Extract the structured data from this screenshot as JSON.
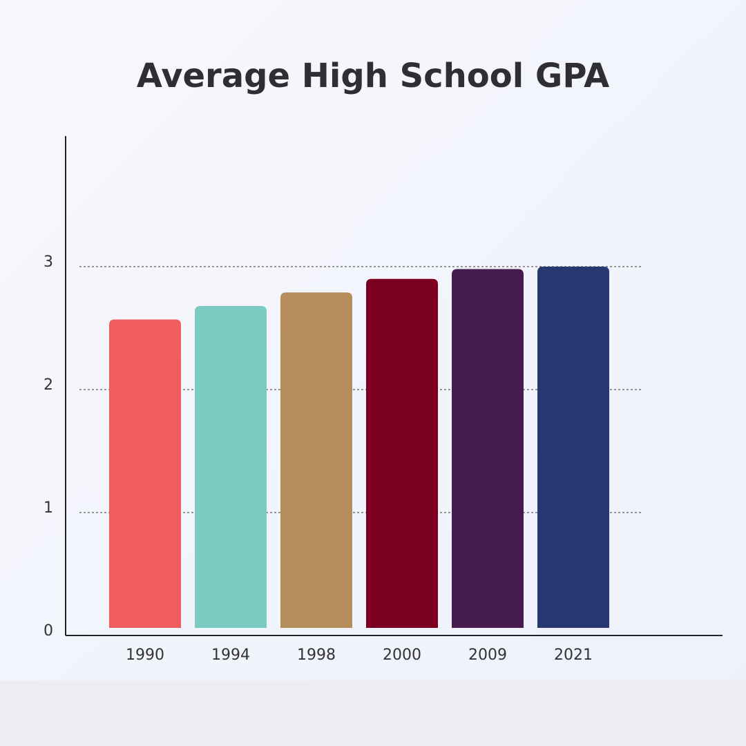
{
  "chart_data": {
    "type": "bar",
    "title": "Average High School GPA",
    "categories": [
      "1990",
      "1994",
      "1998",
      "2000",
      "2009",
      "2021"
    ],
    "values": [
      2.57,
      2.68,
      2.79,
      2.9,
      2.98,
      3.0
    ],
    "colors": [
      "#f05d5e",
      "#7ccbc3",
      "#b58e5c",
      "#7b0020",
      "#461b4d",
      "#273871"
    ],
    "ylim": [
      0,
      4
    ],
    "yticks": [
      0,
      1,
      2,
      3
    ],
    "grid": true
  }
}
